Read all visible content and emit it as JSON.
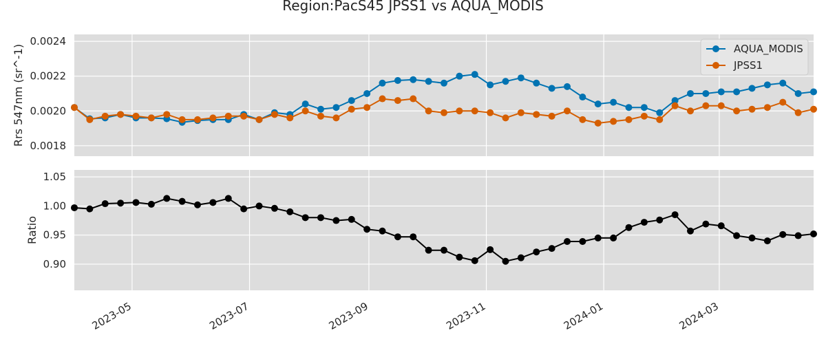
{
  "chart_data": {
    "title": "Region:PacS45 JPSS1 vs AQUA_MODIS",
    "colors": {
      "panel_background": "#dddddd",
      "grid": "#ffffff",
      "aqua": "#0173b2",
      "jpss": "#d55e00",
      "ratio": "#000000"
    },
    "x": [
      "2023-04-01",
      "2023-04-09",
      "2023-04-17",
      "2023-04-25",
      "2023-05-03",
      "2023-05-11",
      "2023-05-19",
      "2023-05-27",
      "2023-06-04",
      "2023-06-12",
      "2023-06-20",
      "2023-06-28",
      "2023-07-06",
      "2023-07-14",
      "2023-07-22",
      "2023-07-30",
      "2023-08-07",
      "2023-08-15",
      "2023-08-23",
      "2023-08-31",
      "2023-09-08",
      "2023-09-16",
      "2023-09-24",
      "2023-10-02",
      "2023-10-10",
      "2023-10-18",
      "2023-10-26",
      "2023-11-03",
      "2023-11-11",
      "2023-11-19",
      "2023-11-27",
      "2023-12-05",
      "2023-12-13",
      "2023-12-21",
      "2023-12-29",
      "2024-01-06",
      "2024-01-14",
      "2024-01-22",
      "2024-01-30",
      "2024-02-07",
      "2024-02-15",
      "2024-02-23",
      "2024-03-02",
      "2024-03-10",
      "2024-03-18",
      "2024-03-26",
      "2024-04-03",
      "2024-04-11",
      "2024-04-19"
    ],
    "xlim": [
      "2023-04-01",
      "2024-04-19"
    ],
    "x_ticks": [
      "2023-05",
      "2023-07",
      "2023-09",
      "2023-11",
      "2024-01",
      "2024-03"
    ],
    "x_tick_dates": [
      "2023-05-01",
      "2023-07-01",
      "2023-09-01",
      "2023-11-01",
      "2024-01-01",
      "2024-03-01"
    ],
    "top": {
      "type": "line",
      "ylabel": "Rrs 547nm (sr^-1)",
      "ylim": [
        0.00174,
        0.00244
      ],
      "yticks": [
        0.0018,
        0.002,
        0.0022,
        0.0024
      ],
      "ytick_labels": [
        "0.0018",
        "0.0020",
        "0.0022",
        "0.0024"
      ],
      "legend_position": "upper right",
      "series": [
        {
          "name": "AQUA_MODIS",
          "values": [
            0.00202,
            0.001955,
            0.00196,
            0.00198,
            0.00196,
            0.00196,
            0.001955,
            0.001935,
            0.001945,
            0.00195,
            0.00195,
            0.00198,
            0.00195,
            0.00199,
            0.00198,
            0.00204,
            0.00201,
            0.00202,
            0.00206,
            0.0021,
            0.00216,
            0.002175,
            0.00218,
            0.00217,
            0.00216,
            0.0022,
            0.00221,
            0.00215,
            0.00217,
            0.00219,
            0.00216,
            0.00213,
            0.00214,
            0.00208,
            0.00204,
            0.00205,
            0.00202,
            0.00202,
            0.00199,
            0.00206,
            0.0021,
            0.0021,
            0.00211,
            0.00211,
            0.00213,
            0.00215,
            0.00216,
            0.0021,
            0.00211
          ]
        },
        {
          "name": "JPSS1",
          "values": [
            0.00202,
            0.00195,
            0.00197,
            0.00198,
            0.00197,
            0.00196,
            0.00198,
            0.00195,
            0.00195,
            0.00196,
            0.00197,
            0.00197,
            0.00195,
            0.00198,
            0.00196,
            0.002,
            0.00197,
            0.00196,
            0.00201,
            0.00202,
            0.00207,
            0.00206,
            0.00207,
            0.002,
            0.00199,
            0.002,
            0.002,
            0.00199,
            0.00196,
            0.00199,
            0.00198,
            0.00197,
            0.002,
            0.00195,
            0.00193,
            0.00194,
            0.00195,
            0.00197,
            0.00195,
            0.00203,
            0.002,
            0.00203,
            0.00203,
            0.002,
            0.00201,
            0.00202,
            0.00205,
            0.00199,
            0.00201
          ]
        }
      ]
    },
    "bottom": {
      "type": "line",
      "ylabel": "Ratio",
      "ylim": [
        0.855,
        1.062
      ],
      "yticks": [
        0.9,
        0.95,
        1.0,
        1.05
      ],
      "ytick_labels": [
        "0.90",
        "0.95",
        "1.00",
        "1.05"
      ],
      "series": [
        {
          "name": "",
          "values": [
            0.997,
            0.995,
            1.004,
            1.005,
            1.006,
            1.003,
            1.013,
            1.008,
            1.002,
            1.006,
            1.013,
            0.995,
            1.0,
            0.996,
            0.99,
            0.98,
            0.98,
            0.975,
            0.977,
            0.96,
            0.957,
            0.947,
            0.947,
            0.924,
            0.924,
            0.912,
            0.906,
            0.925,
            0.905,
            0.911,
            0.921,
            0.927,
            0.939,
            0.939,
            0.945,
            0.945,
            0.963,
            0.972,
            0.976,
            0.985,
            0.957,
            0.969,
            0.966,
            0.949,
            0.945,
            0.94,
            0.951,
            0.949,
            0.952
          ]
        }
      ]
    }
  }
}
